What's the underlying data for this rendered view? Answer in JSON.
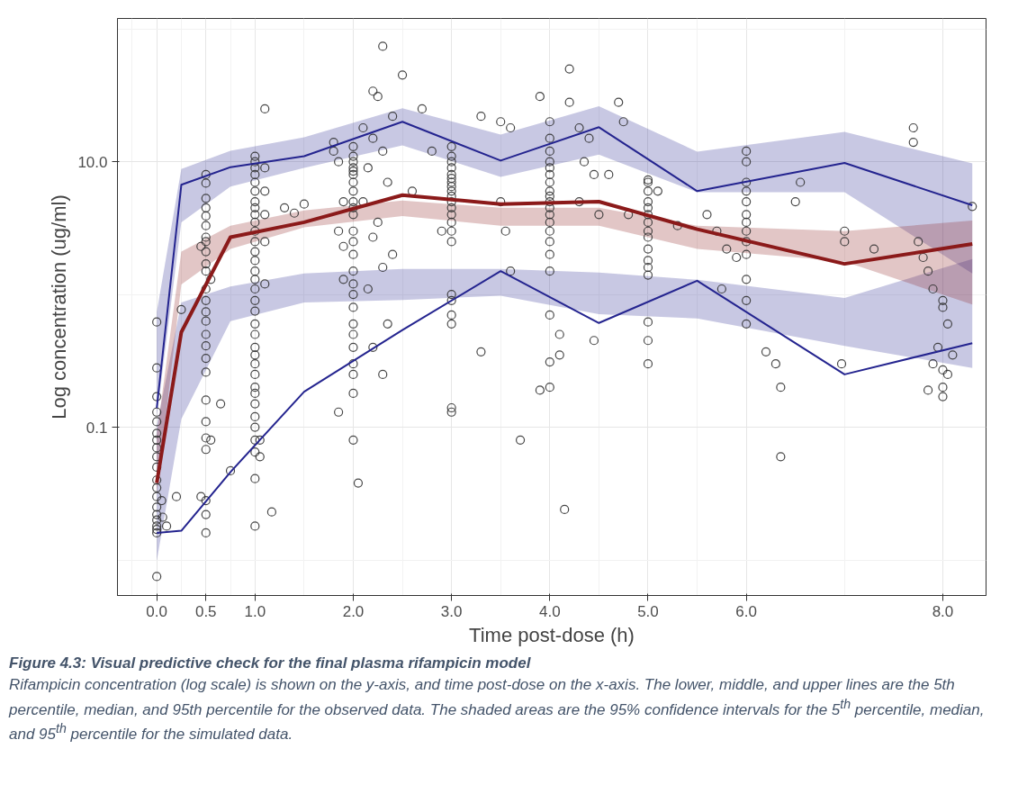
{
  "chart_data": {
    "type": "scatter",
    "xlabel": "Time post-dose (h)",
    "ylabel": "Log concentration (ug/ml)",
    "log": "y",
    "grid": true,
    "xlim": [
      -0.4,
      8.44
    ],
    "ylim": [
      0.0054,
      120
    ],
    "xticks": [
      {
        "value": 0,
        "label": "0.0"
      },
      {
        "value": 0.5,
        "label": "0.5"
      },
      {
        "value": 1,
        "label": "1.0"
      },
      {
        "value": 2,
        "label": "2.0"
      },
      {
        "value": 3,
        "label": "3.0"
      },
      {
        "value": 4,
        "label": "4.0"
      },
      {
        "value": 5,
        "label": "5.0"
      },
      {
        "value": 6,
        "label": "6.0"
      },
      {
        "value": 8,
        "label": "8.0"
      }
    ],
    "yticks": [
      0.1,
      {
        "value": 10,
        "label": "10.0"
      }
    ],
    "annotations": [
      "Figure 4.3: Visual predictive check for the final plasma rifampicin model",
      "Rifampicin concentration (log scale) is shown on the y-axis, and time post-dose on the x-axis. The lower, middle, and upper lines are the 5th percentile, median, and 95th percentile for the observed data. The shaded areas are the 95% confidence intervals for the 5$^{th}$ percentile, median, and 95$^{th}$ percentile for the simulated data."
    ],
    "series": [
      {
        "type": "line",
        "color": "#24248f",
        "x": [
          0,
          0.25,
          0.75,
          1.5,
          2.5,
          3.5,
          4.5,
          5.5,
          7,
          8.3
        ],
        "values": [
          0.016,
          0.0166,
          0.046,
          0.185,
          0.54,
          1.5,
          0.61,
          1.27,
          0.25,
          0.43
        ],
        "lower": [
          0.0098,
          0.115,
          0.63,
          0.87,
          0.91,
          0.98,
          0.71,
          0.66,
          0.41,
          0.28
        ],
        "upper": [
          0.103,
          0.87,
          1.15,
          1.44,
          1.56,
          1.56,
          1.46,
          1.29,
          0.94,
          1.85
        ]
      },
      {
        "type": "line",
        "color": "#24248f",
        "x": [
          0,
          0.25,
          0.75,
          1.5,
          2.5,
          3.5,
          4.5,
          5.5,
          7,
          8.3
        ],
        "values": [
          0.14,
          6.7,
          9.1,
          11,
          20,
          10.2,
          18.2,
          6.0,
          9.8,
          4.7
        ],
        "lower": [
          0.12,
          3.5,
          6.5,
          9.0,
          13.3,
          7.7,
          11.3,
          5.9,
          5.9,
          1.44
        ],
        "upper": [
          0.74,
          8.8,
          12.1,
          15.3,
          25.3,
          16.0,
          26.2,
          11.9,
          16.8,
          9.7
        ]
      },
      {
        "color": "#333333",
        "marker": "circle",
        "x": [
          0,
          0,
          0,
          0,
          0,
          0,
          0,
          0,
          0,
          0,
          0,
          0,
          0,
          0,
          0,
          0,
          0,
          0,
          0,
          0,
          0.05,
          0.1,
          0.06,
          0.2,
          0.25,
          0.5,
          0.5,
          0.5,
          0.5,
          0.5,
          0.5,
          0.5,
          0.5,
          0.5,
          0.5,
          0.5,
          0.5,
          0.5,
          0.5,
          0.5,
          0.5,
          0.5,
          0.5,
          0.5,
          0.5,
          0.5,
          0.5,
          0.5,
          0.5,
          0.5,
          0.5,
          0.45,
          0.55,
          0.55,
          0.45,
          0.65,
          0.75,
          1,
          1,
          1,
          1,
          1,
          1,
          1,
          1,
          1,
          1,
          1,
          1,
          1,
          1,
          1,
          1,
          1,
          1,
          1,
          1,
          1,
          1,
          1,
          1,
          1,
          1,
          1,
          1,
          1,
          1,
          1,
          1,
          1,
          1,
          1.05,
          1.05,
          1.1,
          1.1,
          1.1,
          1.1,
          1.1,
          1.1,
          1.17,
          1.3,
          1.4,
          1.5,
          1.8,
          1.8,
          1.85,
          1.9,
          1.85,
          1.9,
          1.9,
          1.85,
          2,
          2,
          2,
          2,
          2,
          2,
          2,
          2,
          2,
          2,
          2,
          2,
          2,
          2,
          2,
          2,
          2,
          2,
          2,
          2,
          2,
          2,
          2,
          2,
          2,
          2.05,
          2.3,
          2.2,
          2.25,
          2.4,
          2.1,
          2.2,
          2.3,
          2.15,
          2.35,
          2.1,
          2.25,
          2.2,
          2.4,
          2.3,
          2.15,
          2.35,
          2.2,
          2.3,
          2.5,
          2.7,
          2.8,
          2.6,
          2.9,
          3,
          3,
          3,
          3,
          3,
          3,
          3,
          3,
          3,
          3,
          3,
          3,
          3,
          3,
          3,
          3,
          3,
          3,
          3,
          3,
          3,
          3,
          3.3,
          3.3,
          3.5,
          3.6,
          3.5,
          3.55,
          3.6,
          3.7,
          3.9,
          3.9,
          4,
          4,
          4,
          4,
          4,
          4,
          4,
          4,
          4,
          4,
          4,
          4,
          4,
          4,
          4,
          4,
          4,
          4,
          4,
          4,
          4.1,
          4.1,
          4.15,
          4.2,
          4.2,
          4.3,
          4.4,
          4.35,
          4.45,
          4.3,
          4.5,
          4.45,
          4.7,
          4.75,
          4.6,
          4.8,
          5,
          5,
          5,
          5,
          5,
          5,
          5,
          5,
          5,
          5,
          5,
          5,
          5,
          5,
          5,
          5,
          5.1,
          5.3,
          5.6,
          5.7,
          5.8,
          5.9,
          5.75,
          6,
          6,
          6,
          6,
          6,
          6,
          6,
          6,
          6,
          6,
          6,
          6,
          6,
          6.2,
          6.35,
          6.35,
          6.3,
          6.5,
          6.55,
          7,
          7,
          7.3,
          7.7,
          7.7,
          7.75,
          7.8,
          7.85,
          7.9,
          8,
          8,
          8.05,
          7.95,
          8.1,
          7.9,
          8,
          8.05,
          8,
          7.85,
          8,
          6.97,
          8.3
        ],
        "values": [
          0.0075,
          0.016,
          0.017,
          0.018,
          0.02,
          0.022,
          0.025,
          0.03,
          0.035,
          0.04,
          0.05,
          0.06,
          0.07,
          0.08,
          0.09,
          0.11,
          0.13,
          0.17,
          0.28,
          0.62,
          0.028,
          0.018,
          0.021,
          0.03,
          0.77,
          8.0,
          6.9,
          5.3,
          4.5,
          3.9,
          3.3,
          2.7,
          2.5,
          2.1,
          1.7,
          1.5,
          1.1,
          0.9,
          0.74,
          0.63,
          0.5,
          0.41,
          0.33,
          0.26,
          0.16,
          0.11,
          0.083,
          0.068,
          0.028,
          0.022,
          0.016,
          2.3,
          1.3,
          0.08,
          0.03,
          0.15,
          0.047,
          11,
          10,
          9,
          8,
          7,
          6,
          5,
          4.5,
          4,
          3.5,
          3,
          2.5,
          2.1,
          1.8,
          1.5,
          1.3,
          1.1,
          0.9,
          0.75,
          0.6,
          0.5,
          0.4,
          0.35,
          0.3,
          0.25,
          0.2,
          0.18,
          0.15,
          0.12,
          0.1,
          0.08,
          0.065,
          0.041,
          0.018,
          0.08,
          0.06,
          9,
          6,
          4,
          2.5,
          1.2,
          25,
          0.023,
          4.5,
          4.1,
          4.8,
          14,
          12,
          10,
          5,
          3,
          2.3,
          1.3,
          0.13,
          13,
          11,
          10,
          9,
          8.5,
          8,
          7,
          6,
          5,
          4.5,
          4,
          3,
          2.5,
          2,
          1.5,
          1.2,
          1,
          0.8,
          0.6,
          0.5,
          0.4,
          0.3,
          0.25,
          0.18,
          0.08,
          0.038,
          74,
          34,
          31,
          22,
          18,
          15,
          12,
          9,
          7,
          5,
          3.5,
          2.7,
          2,
          1.6,
          1.1,
          0.6,
          0.4,
          0.25,
          45,
          25,
          12,
          6,
          3,
          13,
          11,
          10,
          9,
          8,
          7.5,
          7,
          6.5,
          6,
          5.5,
          5,
          4.5,
          4,
          3.5,
          3,
          2.5,
          1.0,
          0.9,
          0.7,
          0.6,
          0.14,
          0.13,
          22,
          0.37,
          20,
          18,
          5,
          3,
          1.5,
          0.08,
          31,
          0.19,
          20,
          15,
          12,
          10,
          9,
          8,
          7,
          6,
          5.5,
          5,
          4.5,
          4,
          3.5,
          3,
          2.5,
          2,
          1.5,
          0.7,
          0.31,
          0.2,
          0.5,
          0.35,
          0.024,
          50,
          28,
          18,
          15,
          10,
          8,
          5,
          4,
          0.45,
          28,
          20,
          8,
          4,
          7.3,
          7,
          6,
          5,
          4.5,
          4,
          3.5,
          3,
          2.7,
          2.2,
          1.8,
          1.6,
          1.4,
          0.62,
          0.45,
          0.3,
          6,
          3.3,
          4,
          3,
          2.2,
          1.9,
          1.1,
          12,
          10,
          7,
          6,
          5,
          4,
          3.5,
          3,
          2.5,
          2,
          1.3,
          0.9,
          0.6,
          0.37,
          0.2,
          0.06,
          0.3,
          5,
          7,
          3,
          2.5,
          2.2,
          18,
          14,
          2.5,
          1.9,
          1.5,
          1.1,
          0.9,
          0.8,
          0.6,
          0.4,
          0.35,
          0.3,
          0.27,
          0.25,
          0.2,
          0.19,
          0.17,
          0.3,
          4.6
        ]
      },
      {
        "type": "line",
        "color": "#8b1a1a",
        "x": [
          0,
          0.25,
          0.75,
          1.5,
          2.5,
          3.5,
          4.5,
          5.5,
          7,
          8.3
        ],
        "values": [
          0.038,
          0.52,
          2.7,
          3.5,
          5.6,
          4.8,
          5.0,
          3.1,
          1.7,
          2.4
        ],
        "lower": [
          0.032,
          1.19,
          2.2,
          3.2,
          3.9,
          3.3,
          3.3,
          2.2,
          1.77,
          0.84
        ],
        "upper": [
          0.088,
          2.1,
          3.3,
          4.3,
          5.1,
          4.5,
          4.5,
          3.3,
          3.0,
          3.6
        ]
      }
    ]
  }
}
